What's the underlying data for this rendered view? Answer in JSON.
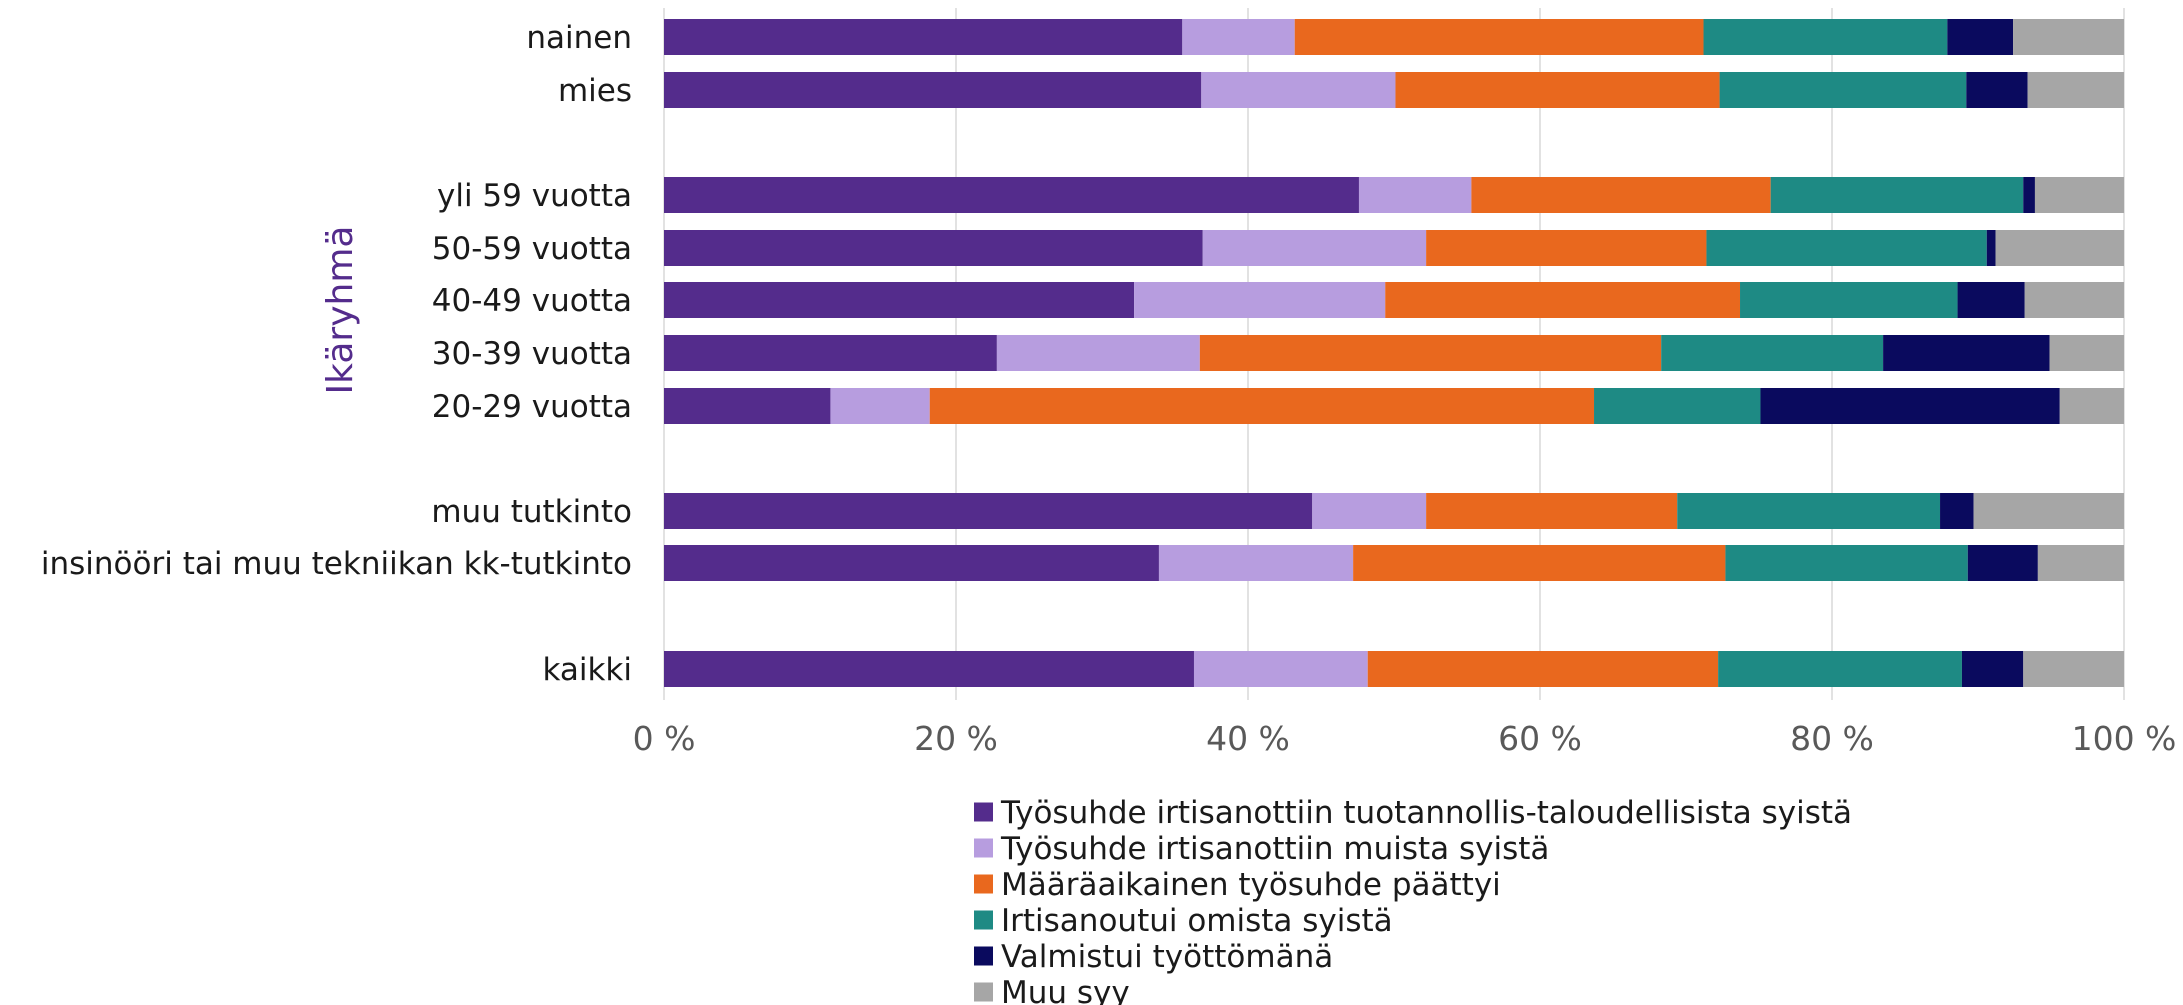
{
  "chart_data": {
    "type": "bar",
    "orientation": "horizontal",
    "stacked": true,
    "percent_stacked": true,
    "categories": [
      "nainen",
      "mies",
      "yli 59 vuotta",
      "50-59 vuotta",
      "40-49 vuotta",
      "30-39 vuotta",
      "20-29 vuotta",
      "muu tutkinto",
      "insinööri tai muu tekniikan kk-tutkinto",
      "kaikki"
    ],
    "group_label": "Ikäryhmä",
    "series": [
      {
        "name": "Työsuhde irtisanottiin tuotannollis-taloudellisista syistä",
        "color": "#542C8C",
        "values": [
          35.5,
          36.8,
          47.6,
          36.9,
          32.2,
          22.8,
          11.4,
          44.4,
          33.9,
          36.3
        ]
      },
      {
        "name": "Työsuhde irtisanottiin muista syistä",
        "color": "#B79DDF",
        "values": [
          7.7,
          13.3,
          7.7,
          15.3,
          17.2,
          13.9,
          6.8,
          7.8,
          13.3,
          11.9
        ]
      },
      {
        "name": "Määräaikainen työsuhde päättyi",
        "color": "#E9681E",
        "values": [
          28.0,
          22.2,
          20.5,
          19.2,
          24.3,
          31.6,
          45.5,
          17.2,
          25.5,
          24.0
        ]
      },
      {
        "name": "Irtisanoutui omista syistä",
        "color": "#1E8A84",
        "values": [
          16.7,
          16.9,
          17.3,
          19.2,
          14.9,
          15.2,
          11.4,
          18.0,
          16.6,
          16.7
        ]
      },
      {
        "name": "Valmistui työttömänä",
        "color": "#0A0A5E",
        "values": [
          4.5,
          4.2,
          0.8,
          0.6,
          4.6,
          11.4,
          20.5,
          2.3,
          4.8,
          4.2
        ]
      },
      {
        "name": "Muu syy",
        "color": "#A6A6A6",
        "values": [
          7.6,
          6.6,
          6.1,
          8.8,
          6.8,
          5.1,
          4.4,
          10.3,
          5.9,
          6.9
        ]
      }
    ],
    "xlim": [
      0,
      100
    ],
    "x_ticks": [
      "0 %",
      "20 %",
      "40 %",
      "60 %",
      "80 %",
      "100 %"
    ],
    "grid": true,
    "legend_position": "bottom"
  }
}
